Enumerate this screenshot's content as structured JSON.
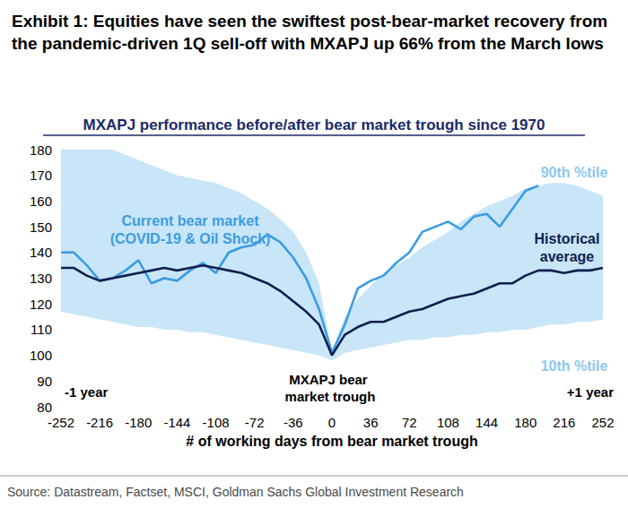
{
  "chart_data": {
    "type": "line",
    "title": "Exhibit 1: Equities have seen the swiftest post-bear-market recovery from the pandemic-driven 1Q sell-off with MXAPJ up 66% from the March lows",
    "subtitle": "MXAPJ performance before/after bear market trough since 1970",
    "xlabel": "# of working days from bear market trough",
    "source": "Source: Datastream, Factset, MSCI, Goldman Sachs Global Investment Research",
    "annotations": [
      "-1 year",
      "+1 year",
      "MXAPJ bear market trough"
    ],
    "x": [
      -252,
      -240,
      -228,
      -216,
      -204,
      -192,
      -180,
      -168,
      -156,
      -144,
      -132,
      -120,
      -108,
      -96,
      -84,
      -72,
      -60,
      -48,
      -36,
      -24,
      -12,
      0,
      12,
      24,
      36,
      48,
      60,
      72,
      84,
      96,
      108,
      120,
      132,
      144,
      156,
      168,
      180,
      192,
      204,
      216,
      228,
      240,
      252
    ],
    "xlim": [
      -252,
      252
    ],
    "xticks": [
      -252,
      -216,
      -180,
      -144,
      -108,
      -72,
      -36,
      0,
      36,
      72,
      108,
      144,
      180,
      216,
      252
    ],
    "ylim": [
      80,
      180
    ],
    "yticks": [
      80,
      90,
      100,
      110,
      120,
      130,
      140,
      150,
      160,
      170,
      180
    ],
    "grid": false,
    "series": [
      {
        "name": "90th %tile",
        "type": "area",
        "color": "#c9e5f8",
        "values": [
          180,
          180,
          180,
          180,
          180,
          178,
          176,
          174,
          172,
          170,
          169,
          168,
          167,
          165,
          163,
          160,
          157,
          153,
          148,
          140,
          128,
          101,
          115,
          122,
          127,
          132,
          135,
          138,
          142,
          145,
          148,
          152,
          155,
          158,
          160,
          162,
          165,
          166,
          167,
          167,
          166,
          164,
          162
        ]
      },
      {
        "name": "10th %tile",
        "type": "area",
        "color": "#c9e5f8",
        "values": [
          117,
          116,
          115,
          114,
          113,
          112,
          111,
          111,
          110,
          110,
          109,
          109,
          108,
          107,
          106,
          105,
          104,
          103,
          102,
          101,
          100,
          98,
          101,
          102,
          103,
          104,
          105,
          106,
          106,
          107,
          107,
          108,
          108,
          109,
          109,
          110,
          110,
          111,
          112,
          112,
          113,
          113,
          114
        ]
      },
      {
        "name": "Current bear market (COVID-19 & Oil Shock)",
        "type": "line",
        "color": "#3a9de2",
        "values": [
          140,
          140,
          135,
          129,
          130,
          133,
          137,
          128,
          130,
          129,
          133,
          136,
          132,
          140,
          142,
          143,
          147,
          144,
          138,
          130,
          118,
          101,
          112,
          126,
          129,
          131,
          136,
          140,
          148,
          150,
          152,
          149,
          154,
          155,
          150,
          157,
          164,
          166,
          null,
          null,
          null,
          null,
          null
        ]
      },
      {
        "name": "Historical average",
        "type": "line",
        "color": "#0f1f4f",
        "values": [
          134,
          134,
          131,
          129,
          130,
          131,
          132,
          133,
          134,
          133,
          134,
          135,
          134,
          133,
          132,
          130,
          128,
          125,
          121,
          117,
          112,
          100,
          108,
          111,
          113,
          113,
          115,
          117,
          118,
          120,
          122,
          123,
          124,
          126,
          128,
          128,
          131,
          133,
          133,
          132,
          133,
          133,
          134
        ]
      }
    ]
  }
}
